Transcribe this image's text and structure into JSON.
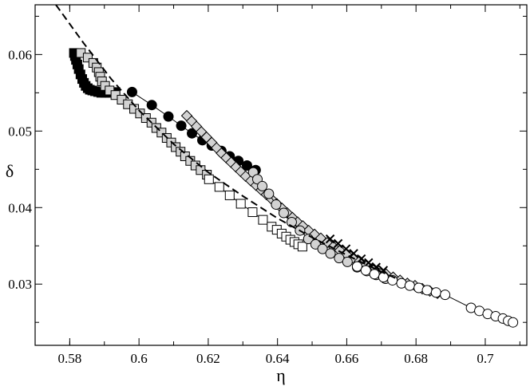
{
  "chart_data": {
    "type": "scatter",
    "title": "",
    "xlabel": "η",
    "ylabel": "δ",
    "xlim": [
      0.57,
      0.712
    ],
    "ylim": [
      0.022,
      0.0665
    ],
    "grid": false,
    "legend": "none",
    "x_ticks": [
      {
        "value": 0.58,
        "label": "0.58"
      },
      {
        "value": 0.6,
        "label": "0.6"
      },
      {
        "value": 0.62,
        "label": "0.62"
      },
      {
        "value": 0.64,
        "label": "0.64"
      },
      {
        "value": 0.66,
        "label": "0.66"
      },
      {
        "value": 0.68,
        "label": "0.68"
      },
      {
        "value": 0.7,
        "label": "0.7"
      }
    ],
    "y_ticks": [
      {
        "value": 0.03,
        "label": "0.03"
      },
      {
        "value": 0.04,
        "label": "0.04"
      },
      {
        "value": 0.05,
        "label": "0.05"
      },
      {
        "value": 0.06,
        "label": "0.06"
      }
    ],
    "series": [
      {
        "marker": "square",
        "fill": "#000000",
        "stroke": "#000000",
        "line": true,
        "points": [
          [
            0.5812,
            0.0602
          ],
          [
            0.5815,
            0.0598
          ],
          [
            0.5818,
            0.0593
          ],
          [
            0.5822,
            0.0587
          ],
          [
            0.5826,
            0.0581
          ],
          [
            0.5831,
            0.0574
          ],
          [
            0.5836,
            0.0568
          ],
          [
            0.5841,
            0.0563
          ],
          [
            0.5846,
            0.0559
          ],
          [
            0.5852,
            0.0556
          ],
          [
            0.5858,
            0.0554
          ],
          [
            0.5865,
            0.0553
          ],
          [
            0.5873,
            0.0552
          ],
          [
            0.5882,
            0.0551
          ],
          [
            0.5891,
            0.055
          ],
          [
            0.5902,
            0.055
          ],
          [
            0.5915,
            0.055
          ],
          [
            0.5932,
            0.0551
          ]
        ]
      },
      {
        "marker": "circle",
        "fill": "#000000",
        "stroke": "#000000",
        "line": true,
        "points": [
          [
            0.598,
            0.0551
          ],
          [
            0.6037,
            0.0534
          ],
          [
            0.6085,
            0.0519
          ],
          [
            0.6122,
            0.0507
          ],
          [
            0.6153,
            0.0497
          ],
          [
            0.6183,
            0.0488
          ],
          [
            0.621,
            0.0481
          ],
          [
            0.6238,
            0.0474
          ],
          [
            0.6262,
            0.0467
          ],
          [
            0.6287,
            0.0461
          ],
          [
            0.6312,
            0.0455
          ],
          [
            0.6337,
            0.0449
          ]
        ]
      },
      {
        "marker": "square",
        "fill": "#d3d3d3",
        "stroke": "#000000",
        "line": true,
        "points": [
          [
            0.5832,
            0.0602
          ],
          [
            0.5852,
            0.0596
          ],
          [
            0.5868,
            0.0589
          ],
          [
            0.5878,
            0.0583
          ],
          [
            0.5884,
            0.0577
          ],
          [
            0.5888,
            0.0571
          ],
          [
            0.5893,
            0.0565
          ],
          [
            0.5902,
            0.0559
          ],
          [
            0.5915,
            0.0553
          ],
          [
            0.5932,
            0.0547
          ],
          [
            0.595,
            0.0541
          ],
          [
            0.5968,
            0.0535
          ],
          [
            0.5986,
            0.0529
          ],
          [
            0.6003,
            0.0523
          ],
          [
            0.602,
            0.0517
          ],
          [
            0.6036,
            0.0511
          ],
          [
            0.605,
            0.0504
          ],
          [
            0.6065,
            0.0498
          ],
          [
            0.608,
            0.0491
          ],
          [
            0.6093,
            0.0485
          ],
          [
            0.6106,
            0.0479
          ],
          [
            0.612,
            0.0473
          ],
          [
            0.6133,
            0.0467
          ],
          [
            0.6148,
            0.0461
          ],
          [
            0.6163,
            0.0455
          ],
          [
            0.6178,
            0.0449
          ],
          [
            0.6196,
            0.0443
          ]
        ]
      },
      {
        "marker": "square",
        "fill": "#ffffff",
        "stroke": "#000000",
        "line": true,
        "points": [
          [
            0.6202,
            0.0437
          ],
          [
            0.6232,
            0.0427
          ],
          [
            0.6262,
            0.0416
          ],
          [
            0.6294,
            0.0405
          ],
          [
            0.6328,
            0.0394
          ],
          [
            0.6358,
            0.0384
          ],
          [
            0.6383,
            0.0375
          ],
          [
            0.6398,
            0.0371
          ],
          [
            0.6412,
            0.0366
          ],
          [
            0.6425,
            0.0362
          ],
          [
            0.6437,
            0.0358
          ],
          [
            0.6449,
            0.0355
          ],
          [
            0.646,
            0.0352
          ],
          [
            0.6472,
            0.0349
          ]
        ]
      },
      {
        "marker": "diamond",
        "fill": "#d3d3d3",
        "stroke": "#000000",
        "line": true,
        "points": [
          [
            0.6138,
            0.052
          ],
          [
            0.6152,
            0.0513
          ],
          [
            0.6166,
            0.0506
          ],
          [
            0.618,
            0.0499
          ],
          [
            0.6195,
            0.0492
          ],
          [
            0.621,
            0.0485
          ],
          [
            0.6224,
            0.0478
          ],
          [
            0.6238,
            0.0471
          ],
          [
            0.6252,
            0.0465
          ],
          [
            0.6266,
            0.0459
          ],
          [
            0.628,
            0.0453
          ],
          [
            0.6294,
            0.0447
          ],
          [
            0.6308,
            0.0441
          ],
          [
            0.6323,
            0.0435
          ],
          [
            0.6338,
            0.0429
          ],
          [
            0.6353,
            0.0423
          ],
          [
            0.6368,
            0.0417
          ],
          [
            0.6383,
            0.0411
          ],
          [
            0.6398,
            0.0405
          ],
          [
            0.6413,
            0.0399
          ],
          [
            0.6428,
            0.0393
          ],
          [
            0.6443,
            0.0387
          ],
          [
            0.6458,
            0.0381
          ],
          [
            0.6473,
            0.0376
          ],
          [
            0.649,
            0.037
          ],
          [
            0.6507,
            0.0365
          ],
          [
            0.6525,
            0.036
          ],
          [
            0.6543,
            0.0354
          ],
          [
            0.6561,
            0.0349
          ],
          [
            0.658,
            0.0344
          ],
          [
            0.6599,
            0.0339
          ],
          [
            0.6618,
            0.0334
          ],
          [
            0.6637,
            0.033
          ],
          [
            0.6656,
            0.0325
          ],
          [
            0.6675,
            0.0321
          ],
          [
            0.6694,
            0.0317
          ],
          [
            0.6714,
            0.0313
          ],
          [
            0.6734,
            0.0309
          ],
          [
            0.6754,
            0.0305
          ],
          [
            0.6775,
            0.0301
          ],
          [
            0.6797,
            0.0298
          ],
          [
            0.6818,
            0.0294
          ],
          [
            0.684,
            0.0291
          ],
          [
            0.6862,
            0.0288
          ]
        ]
      },
      {
        "marker": "x",
        "fill": "none",
        "stroke": "#000000",
        "line": true,
        "points": [
          [
            0.6552,
            0.0359
          ],
          [
            0.6575,
            0.0353
          ],
          [
            0.6598,
            0.0346
          ],
          [
            0.662,
            0.034
          ],
          [
            0.6642,
            0.0333
          ],
          [
            0.6663,
            0.0328
          ],
          [
            0.6685,
            0.0322
          ],
          [
            0.6706,
            0.0318
          ]
        ]
      },
      {
        "marker": "circle",
        "fill": "#d3d3d3",
        "stroke": "#000000",
        "line": true,
        "points": [
          [
            0.633,
            0.0446
          ],
          [
            0.6342,
            0.0437
          ],
          [
            0.6356,
            0.0428
          ],
          [
            0.6375,
            0.0418
          ],
          [
            0.6396,
            0.0404
          ],
          [
            0.6418,
            0.0393
          ],
          [
            0.6441,
            0.0381
          ],
          [
            0.6465,
            0.037
          ],
          [
            0.6489,
            0.0359
          ],
          [
            0.651,
            0.0352
          ],
          [
            0.653,
            0.0346
          ],
          [
            0.6553,
            0.034
          ],
          [
            0.6578,
            0.0334
          ],
          [
            0.6602,
            0.0329
          ],
          [
            0.663,
            0.0322
          ],
          [
            0.6658,
            0.0317
          ],
          [
            0.6685,
            0.0312
          ],
          [
            0.6712,
            0.0307
          ]
        ]
      },
      {
        "marker": "circle",
        "fill": "#ffffff",
        "stroke": "#000000",
        "line": true,
        "points": [
          [
            0.663,
            0.0323
          ],
          [
            0.6655,
            0.0318
          ],
          [
            0.668,
            0.0313
          ],
          [
            0.6706,
            0.0309
          ],
          [
            0.6732,
            0.0305
          ],
          [
            0.6758,
            0.0301
          ],
          [
            0.6782,
            0.0298
          ],
          [
            0.6808,
            0.0295
          ],
          [
            0.6832,
            0.0292
          ],
          [
            0.6858,
            0.0289
          ],
          [
            0.6884,
            0.0286
          ],
          [
            0.6959,
            0.0269
          ],
          [
            0.6983,
            0.0265
          ],
          [
            0.7007,
            0.0261
          ],
          [
            0.703,
            0.0258
          ],
          [
            0.7051,
            0.0255
          ],
          [
            0.7066,
            0.0252
          ],
          [
            0.708,
            0.025
          ]
        ]
      },
      {
        "marker": "none",
        "fill": "none",
        "stroke": "#000000",
        "line": true,
        "dashed": true,
        "points": [
          [
            0.576,
            0.0665
          ],
          [
            0.584,
            0.0615
          ],
          [
            0.592,
            0.0568
          ],
          [
            0.6,
            0.0527
          ],
          [
            0.61,
            0.0483
          ],
          [
            0.62,
            0.0446
          ],
          [
            0.63,
            0.0415
          ],
          [
            0.64,
            0.0386
          ],
          [
            0.65,
            0.0361
          ],
          [
            0.66,
            0.0338
          ],
          [
            0.67,
            0.0316
          ],
          [
            0.674,
            0.0308
          ]
        ]
      }
    ]
  }
}
